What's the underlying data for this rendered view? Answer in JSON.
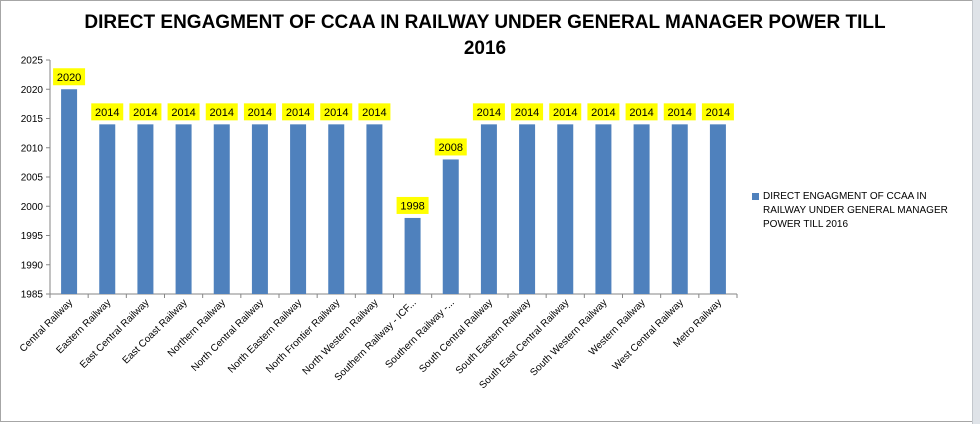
{
  "chart_data": {
    "type": "bar",
    "title": "DIRECT  ENGAGMENT OF CCAA IN RAILWAY UNDER GENERAL MANAGER POWER TILL 2016",
    "categories": [
      "Central Railway",
      "Eastern Railway",
      "East Central Railway",
      "East Coast Railway",
      "Northern Railway",
      "North Central  Railway",
      "North Eastern  Railway",
      "North Frontier  Railway",
      "North Western Railway",
      "Southern Railway - ICF...",
      "Southern  Railway -...",
      "South Central Railway",
      "South Eastern Railway",
      "South East Central  Railway",
      "South Western Railway",
      "Western Railway",
      "West Central Railway",
      "Metro Railway"
    ],
    "series": [
      {
        "name": "DIRECT  ENGAGMENT OF CCAA IN RAILWAY UNDER GENERAL MANAGER POWER TILL 2016",
        "values": [
          2020,
          2014,
          2014,
          2014,
          2014,
          2014,
          2014,
          2014,
          2014,
          1998,
          2008,
          2014,
          2014,
          2014,
          2014,
          2014,
          2014,
          2014
        ]
      }
    ],
    "data_labels": [
      "2020",
      "2014",
      "2014",
      "2014",
      "2014",
      "2014",
      "2014",
      "2014",
      "2014",
      "1998",
      "2008",
      "2014",
      "2014",
      "2014",
      "2014",
      "2014",
      "2014",
      "2014"
    ],
    "y_ticks": [
      "1985",
      "1990",
      "1995",
      "2000",
      "2005",
      "2010",
      "2015",
      "2020",
      "2025"
    ],
    "ylim": [
      1985,
      2025
    ],
    "xlabel": "",
    "ylabel": "",
    "grid": false,
    "legend_position": "right",
    "colors": {
      "bar": "#4f81bd",
      "label_bg": "#ffff00",
      "axis": "#868686"
    }
  }
}
